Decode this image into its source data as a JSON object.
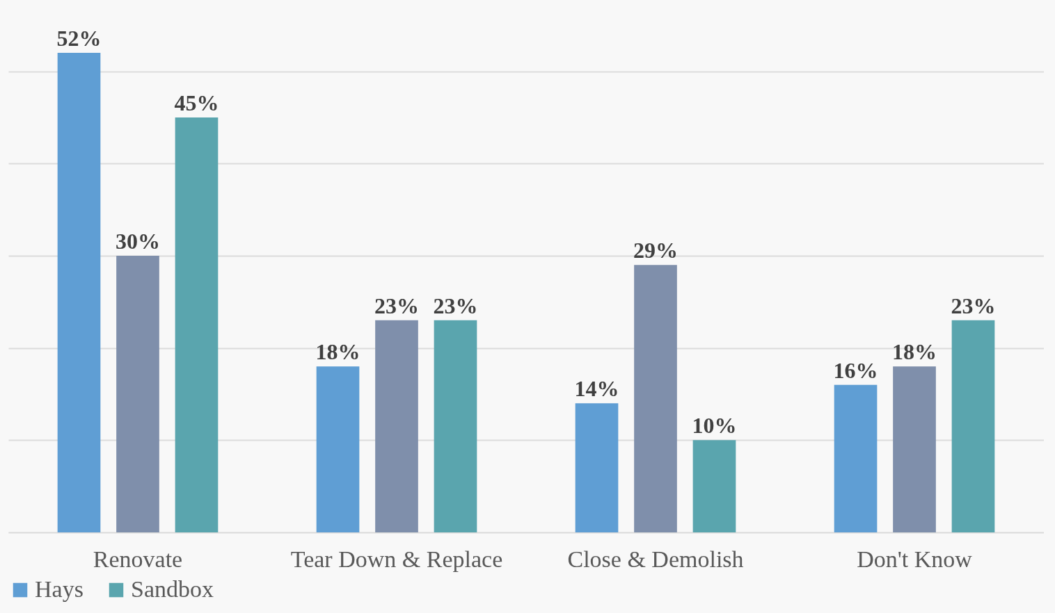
{
  "chart_data": {
    "type": "bar",
    "categories": [
      "Renovate",
      "Tear Down & Replace",
      "Close & Demolish",
      "Don't Know"
    ],
    "series": [
      {
        "name": "Hays",
        "color": "#5f9ed4",
        "values": [
          52,
          18,
          14,
          16
        ],
        "value_labels": [
          "52%",
          "18%",
          "14%",
          "16%"
        ]
      },
      {
        "color": "#7f8fab",
        "values": [
          30,
          23,
          29,
          18
        ],
        "value_labels": [
          "30%",
          "23%",
          "29%",
          "18%"
        ]
      },
      {
        "name": "Sandbox",
        "color": "#5aa5ae",
        "values": [
          45,
          23,
          10,
          23
        ],
        "value_labels": [
          "45%",
          "23%",
          "10%",
          "23%"
        ]
      }
    ],
    "yticks": [
      {
        "value": 0,
        "label": null
      },
      {
        "value": 10,
        "label": null
      },
      {
        "value": 20,
        "label": null
      },
      {
        "value": 30,
        "label": null
      },
      {
        "value": 40,
        "label": null
      },
      {
        "value": 50,
        "label": null
      }
    ],
    "tick_labels": "x",
    "grid": "y",
    "legend": "bottom"
  }
}
